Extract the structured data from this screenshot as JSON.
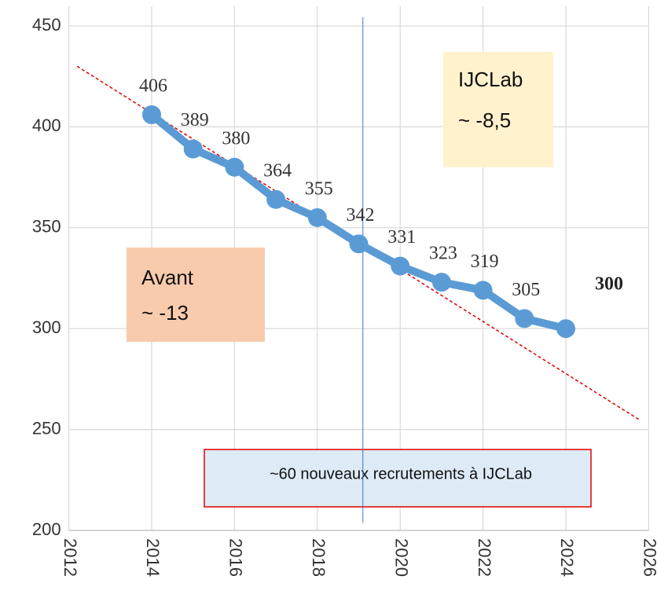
{
  "chart_data": {
    "type": "line",
    "x": [
      2014,
      2015,
      2016,
      2017,
      2018,
      2019,
      2020,
      2021,
      2022,
      2023,
      2024
    ],
    "series": [
      {
        "color": "#5b9bd5",
        "values": [
          406,
          389,
          380,
          364,
          355,
          342,
          331,
          323,
          319,
          305,
          300
        ]
      }
    ],
    "xlim": [
      2012,
      2026
    ],
    "xticks": [
      2012,
      2014,
      2016,
      2018,
      2020,
      2022,
      2024,
      2026
    ],
    "ylim": [
      200,
      450
    ],
    "yticks": [
      200,
      250,
      300,
      350,
      400,
      450
    ],
    "grid": true,
    "trend_line": {
      "color": "#e00000",
      "x": [
        2012.2,
        2025.8
      ],
      "y": [
        430,
        254.5
      ]
    },
    "vline": {
      "color": "#4472c4",
      "x": 2019.1
    },
    "annotations": [
      {
        "lines": [
          "IJCLab",
          "~ -8,5"
        ],
        "color": "#fff2cc"
      },
      {
        "lines": [
          "Avant",
          "~ -13"
        ],
        "color": "#f8cbad"
      },
      {
        "lines": [
          "~60 nouveaux recrutements à  IJCLab"
        ],
        "color": "#deebf7"
      }
    ]
  }
}
